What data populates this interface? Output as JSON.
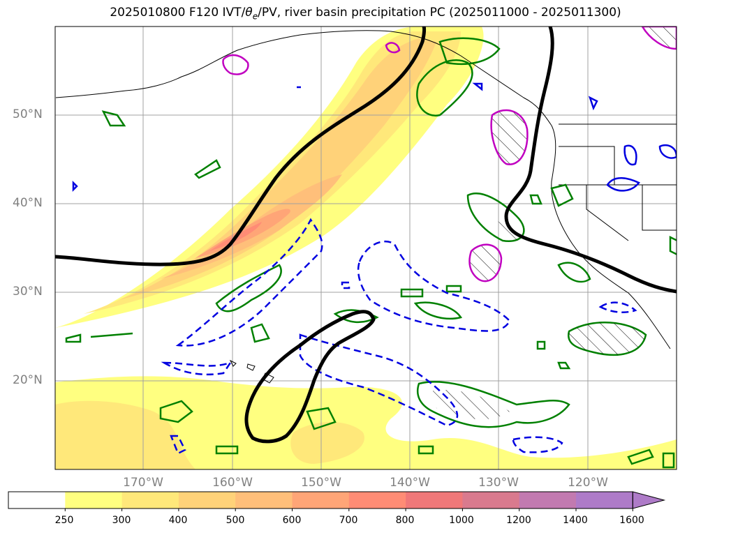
{
  "title_prefix": "2025010800 F120 IVT/",
  "title_theta": "θ",
  "title_sub": "e",
  "title_suffix": "/PV, river basin precipitation PC (2025011000 - 2025011300)",
  "lat_labels": [
    "50°N",
    "40°N",
    "30°N",
    "20°N"
  ],
  "lon_labels": [
    "170°W",
    "160°W",
    "150°W",
    "140°W",
    "130°W",
    "120°W"
  ],
  "colorbar": {
    "labels": [
      "250",
      "300",
      "400",
      "500",
      "600",
      "700",
      "800",
      "1000",
      "1200",
      "1400",
      "1600"
    ],
    "colors": [
      "#ffffff",
      "#ffff80",
      "#ffe87a",
      "#ffd279",
      "#ffbf7a",
      "#ffa577",
      "#ff8c75",
      "#f07879",
      "#d97a8e",
      "#c27ab0",
      "#ae7bc8"
    ]
  }
}
